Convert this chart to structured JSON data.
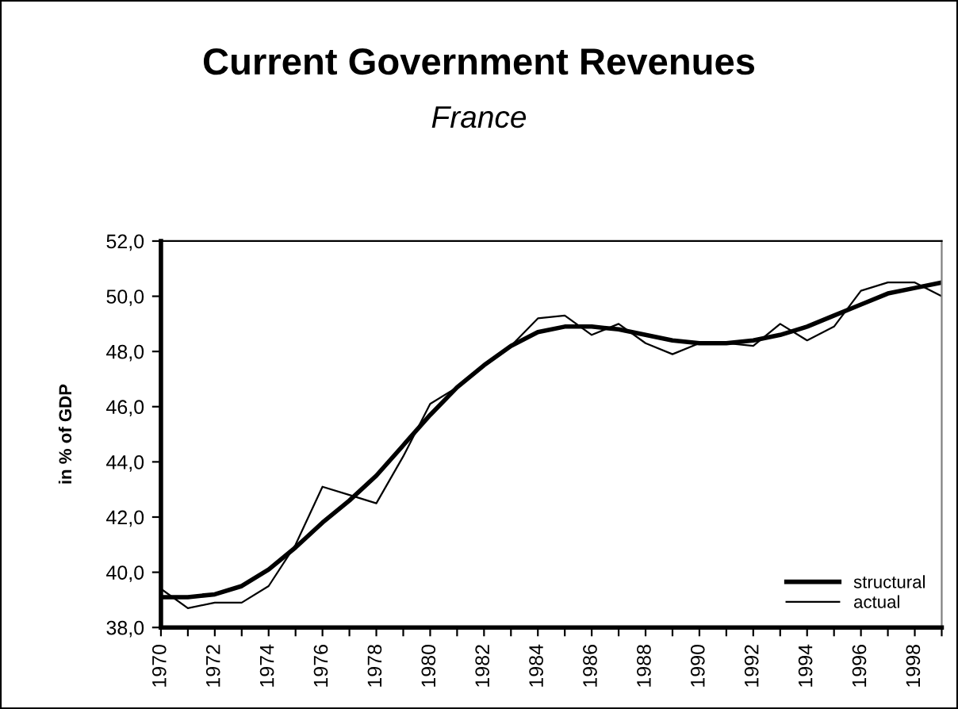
{
  "chart_data": {
    "type": "line",
    "title": "Current Government Revenues",
    "subtitle": "France",
    "ylabel": "in % of GDP",
    "categories": [
      "1970",
      null,
      "1972",
      null,
      "1974",
      null,
      "1976",
      null,
      "1978",
      null,
      "1980",
      null,
      "1982",
      null,
      "1984",
      null,
      "1986",
      null,
      "1988",
      null,
      "1990",
      null,
      "1992",
      null,
      "1994",
      null,
      "1996",
      null,
      "1998",
      null
    ],
    "series": [
      {
        "name": "structural",
        "color": "#000000",
        "values": [
          39.1,
          39.1,
          39.2,
          39.5,
          40.1,
          40.9,
          41.8,
          42.6,
          43.5,
          44.6,
          45.7,
          46.7,
          47.5,
          48.2,
          48.7,
          48.9,
          48.9,
          48.8,
          48.6,
          48.4,
          48.3,
          48.3,
          48.4,
          48.6,
          48.9,
          49.3,
          49.7,
          50.1,
          50.3,
          50.5
        ]
      },
      {
        "name": "actual",
        "color": "#000000",
        "values": [
          39.4,
          38.7,
          38.9,
          38.9,
          39.5,
          41.0,
          43.1,
          42.8,
          42.5,
          44.2,
          46.1,
          46.7,
          47.5,
          48.2,
          49.2,
          49.3,
          48.6,
          49.0,
          48.3,
          47.9,
          48.3,
          48.3,
          48.2,
          49.0,
          48.4,
          48.9,
          50.2,
          50.5,
          50.5,
          50.0
        ]
      }
    ],
    "ylim": [
      38,
      52
    ],
    "yticks": [
      {
        "value": 38,
        "label": "38,0"
      },
      {
        "value": 40,
        "label": "40,0"
      },
      {
        "value": 42,
        "label": "42,0"
      },
      {
        "value": 44,
        "label": "44,0"
      },
      {
        "value": 46,
        "label": "46,0"
      },
      {
        "value": 48,
        "label": "48,0"
      },
      {
        "value": 50,
        "label": "50,0"
      },
      {
        "value": 52,
        "label": "52,0"
      }
    ],
    "grid": false,
    "legend": "bottom right",
    "marker": "none",
    "line_style": "solid"
  }
}
